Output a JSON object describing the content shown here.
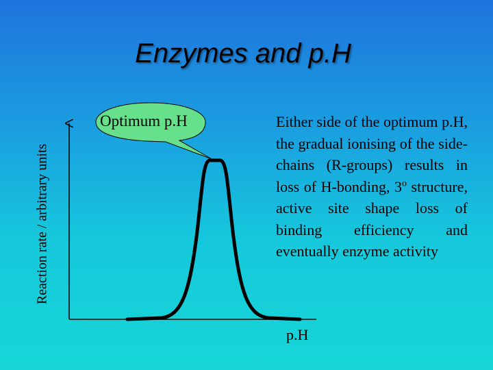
{
  "slide": {
    "title": "Enzymes and p.H",
    "y_axis_label": "Reaction rate / arbitrary units",
    "x_axis_label": "p.H",
    "callout_label": "Optimum p.H",
    "description_prefix": "Either side of the optimum p.H, the gradual ionising of the side-chains (R-groups) results in loss of H-bonding, 3",
    "description_superscript": "o",
    "description_suffix": " structure, active site shape loss of binding efficiency and eventually enzyme activity"
  },
  "colors": {
    "background_top": "#1f73dc",
    "background_bottom": "#16d6d6",
    "callout_fill": "#66e08a",
    "curve": "#000000"
  }
}
